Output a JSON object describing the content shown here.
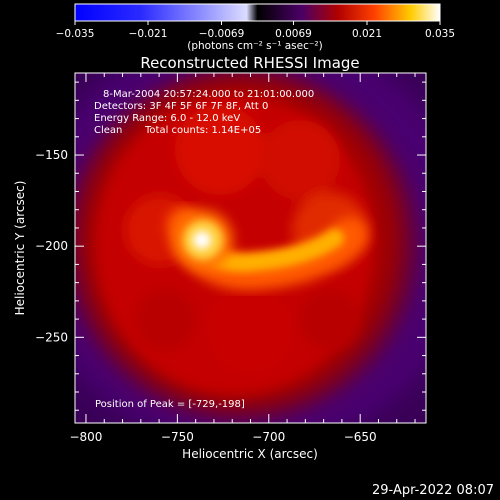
{
  "figure": {
    "title": "Reconstructed RHESSI Image",
    "colorbar": {
      "ticks": [
        "-0.035",
        "-0.021",
        "-0.0069",
        "0.0069",
        "0.021",
        "0.035"
      ],
      "range": [
        -0.035,
        0.035
      ],
      "unit_label": "(photons cm⁻² s⁻¹ asec⁻²)"
    },
    "annotations": {
      "time": "8-Mar-2004 20:57:24.000 to 21:01:00.000",
      "detectors": "Detectors: 3F 4F 5F 6F 7F 8F, Att 0",
      "energy": "Energy Range: 6.0 - 12.0 keV",
      "method": "Clean",
      "counts": "Total counts: 1.14E+05",
      "peak": "Position of Peak = [-729,-198]"
    },
    "footer_date": "29-Apr-2022 08:07"
  },
  "chart_data": {
    "type": "heatmap",
    "title": "Reconstructed RHESSI Image",
    "xlabel": "Heliocentric X (arcsec)",
    "ylabel": "Heliocentric Y (arcsec)",
    "xlim": [
      -806,
      -614
    ],
    "ylim": [
      -297,
      -105
    ],
    "xticks": [
      -800,
      -750,
      -700,
      -650
    ],
    "yticks": [
      -150,
      -200,
      -250
    ],
    "colormap": "hot (black-purple-red-orange-yellow-white)",
    "peak_position": [
      -729,
      -198
    ],
    "features": [
      {
        "name": "bright compact source",
        "x": -729,
        "y": -198,
        "level": 1.0
      },
      {
        "name": "arc-shaped loop",
        "level": 0.8
      },
      {
        "name": "diffuse halo",
        "level": 0.45
      }
    ]
  }
}
